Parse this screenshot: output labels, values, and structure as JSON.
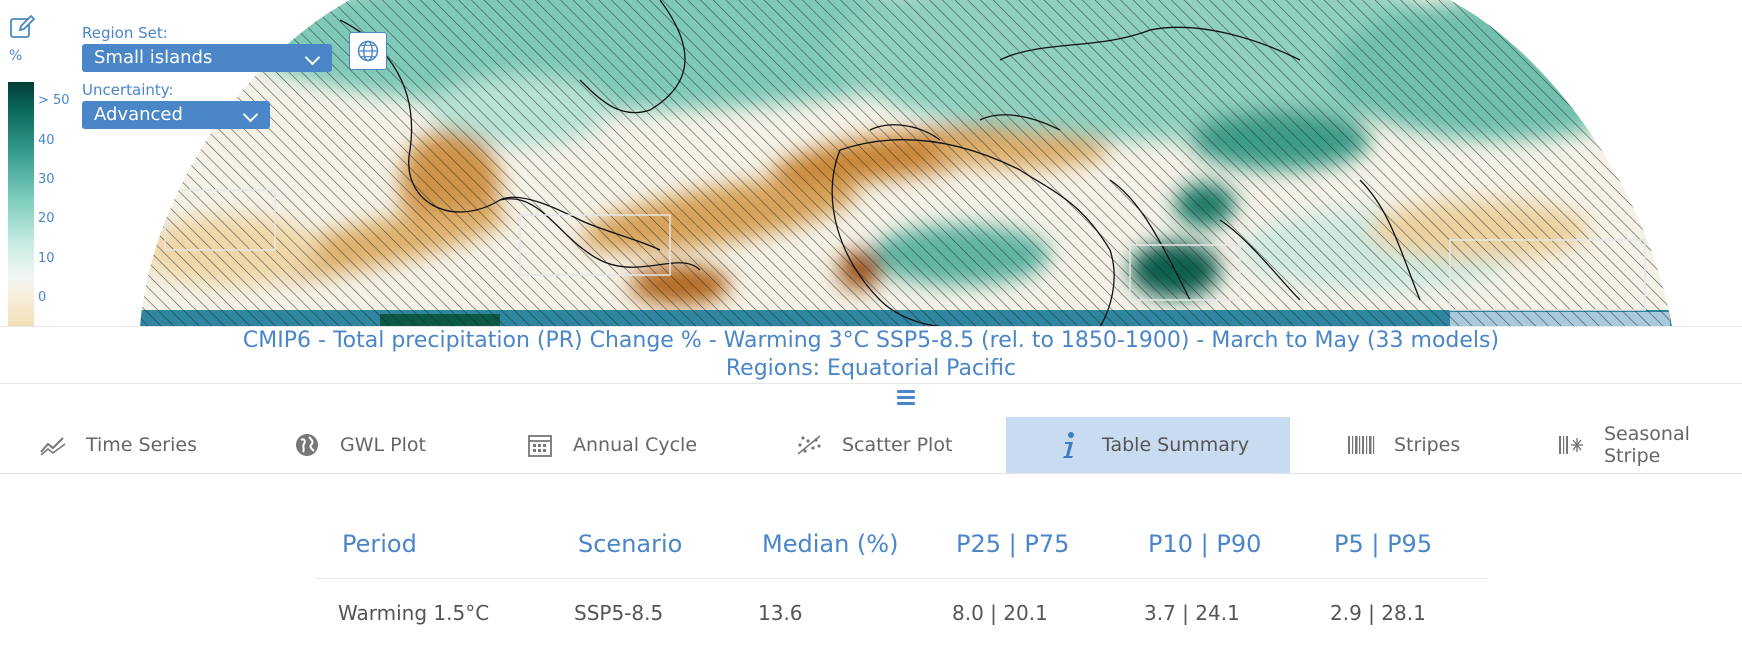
{
  "map": {
    "unit": "%",
    "colorbar_ticks": [
      "> 50",
      "40",
      "30",
      "20",
      "10",
      "0"
    ],
    "colors": {
      "wet_dark": "#0d6b5d",
      "wet": "#59b6a5",
      "wet_light": "#a7dfd2",
      "neutral": "#f3f2e8",
      "dry_light": "#f1dcae",
      "dry": "#c98a3c",
      "dry_dark": "#9a5616",
      "ocean_blue": "#2f86a0",
      "hatch": "#222222"
    }
  },
  "controls": {
    "region_set_label": "Region Set:",
    "region_set_value": "Small islands",
    "uncertainty_label": "Uncertainty:",
    "uncertainty_value": "Advanced",
    "edit_icon": "edit-icon",
    "globe_icon": "globe-icon"
  },
  "title": {
    "line1": "CMIP6 - Total precipitation (PR) Change % - Warming 3°C SSP5-8.5 (rel. to 1850-1900) - March to May (33 models)",
    "line2": "Regions: Equatorial Pacific"
  },
  "tabs": [
    {
      "label": "Time Series",
      "icon": "time-series-icon"
    },
    {
      "label": "GWL Plot",
      "icon": "globe-plot-icon"
    },
    {
      "label": "Annual Cycle",
      "icon": "calendar-icon"
    },
    {
      "label": "Scatter Plot",
      "icon": "scatter-icon"
    },
    {
      "label": "Table Summary",
      "icon": "info-icon",
      "active": true
    },
    {
      "label": "Stripes",
      "icon": "stripes-icon"
    },
    {
      "label": "Seasonal Stripe",
      "icon": "seasonal-stripes-icon"
    }
  ],
  "table": {
    "headers": [
      "Period",
      "Scenario",
      "Median (%)",
      "P25 | P75",
      "P10 | P90",
      "P5 | P95"
    ],
    "rows": [
      [
        "Warming 1.5°C",
        "SSP5-8.5",
        "13.6",
        "8.0 | 20.1",
        "3.7 | 24.1",
        "2.9 | 28.1"
      ]
    ]
  }
}
